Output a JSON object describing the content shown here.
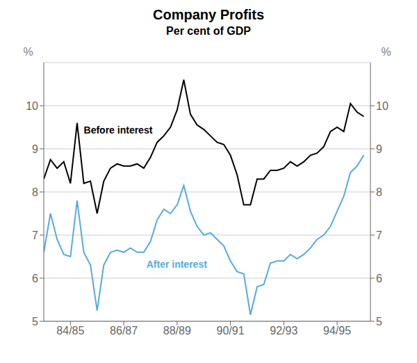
{
  "chart_data": {
    "type": "line",
    "title": "Company Profits",
    "subtitle": "Per cent of GDP",
    "ylabel": "%",
    "y2label": "%",
    "x": [
      1983.0,
      1983.25,
      1983.5,
      1983.75,
      1984.0,
      1984.25,
      1984.5,
      1984.75,
      1985.0,
      1985.25,
      1985.5,
      1985.75,
      1986.0,
      1986.25,
      1986.5,
      1986.75,
      1987.0,
      1987.25,
      1987.5,
      1987.75,
      1988.0,
      1988.25,
      1988.5,
      1988.75,
      1989.0,
      1989.25,
      1989.5,
      1989.75,
      1990.0,
      1990.25,
      1990.5,
      1990.75,
      1991.0,
      1991.25,
      1991.5,
      1991.75,
      1992.0,
      1992.25,
      1992.5,
      1992.75,
      1993.0,
      1993.25,
      1993.5,
      1993.75,
      1994.0,
      1994.25,
      1994.5,
      1994.75,
      1995.0
    ],
    "series": [
      {
        "name": "Before interest",
        "color": "#000000",
        "values": [
          8.3,
          8.75,
          8.55,
          8.7,
          8.2,
          9.6,
          8.2,
          8.25,
          7.5,
          8.25,
          8.55,
          8.65,
          8.6,
          8.6,
          8.65,
          8.55,
          8.8,
          9.15,
          9.3,
          9.5,
          9.9,
          10.6,
          9.8,
          9.55,
          9.45,
          9.3,
          9.15,
          9.1,
          8.85,
          8.4,
          7.7,
          7.7,
          8.3,
          8.3,
          8.5,
          8.5,
          8.55,
          8.7,
          8.6,
          8.7,
          8.85,
          8.9,
          9.05,
          9.4,
          9.5,
          9.4,
          10.05,
          9.85,
          9.75
        ]
      },
      {
        "name": "After interest",
        "color": "#55aadd",
        "values": [
          6.6,
          7.5,
          6.9,
          6.55,
          6.5,
          7.8,
          6.6,
          6.3,
          5.25,
          6.3,
          6.6,
          6.65,
          6.6,
          6.7,
          6.6,
          6.6,
          6.85,
          7.35,
          7.6,
          7.5,
          7.7,
          8.15,
          7.55,
          7.2,
          7.0,
          7.05,
          6.9,
          6.75,
          6.4,
          6.15,
          6.1,
          5.15,
          5.8,
          5.85,
          6.35,
          6.4,
          6.4,
          6.55,
          6.45,
          6.55,
          6.7,
          6.9,
          7.0,
          7.2,
          7.55,
          7.9,
          8.45,
          8.6,
          8.85
        ]
      }
    ],
    "annotations": [
      {
        "text": "Before interest",
        "x": 1984.5,
        "y": 9.35,
        "color": "#000000"
      },
      {
        "text": "After interest",
        "x": 1986.85,
        "y": 6.25,
        "color": "#55aadd"
      }
    ],
    "xlim": [
      1983.0,
      1995.25
    ],
    "xticks": [
      {
        "value": 1984,
        "label": "84/85"
      },
      {
        "value": 1986,
        "label": "86/87"
      },
      {
        "value": 1988,
        "label": "88/89"
      },
      {
        "value": 1990,
        "label": "90/91"
      },
      {
        "value": 1992,
        "label": "92/93"
      },
      {
        "value": 1994,
        "label": "94/95"
      }
    ],
    "ylim": [
      5,
      11
    ],
    "yticks": [
      5,
      6,
      7,
      8,
      9,
      10
    ],
    "y2lim": [
      5,
      11
    ],
    "y2ticks": [
      5,
      6,
      7,
      8,
      9,
      10
    ],
    "grid": true
  }
}
